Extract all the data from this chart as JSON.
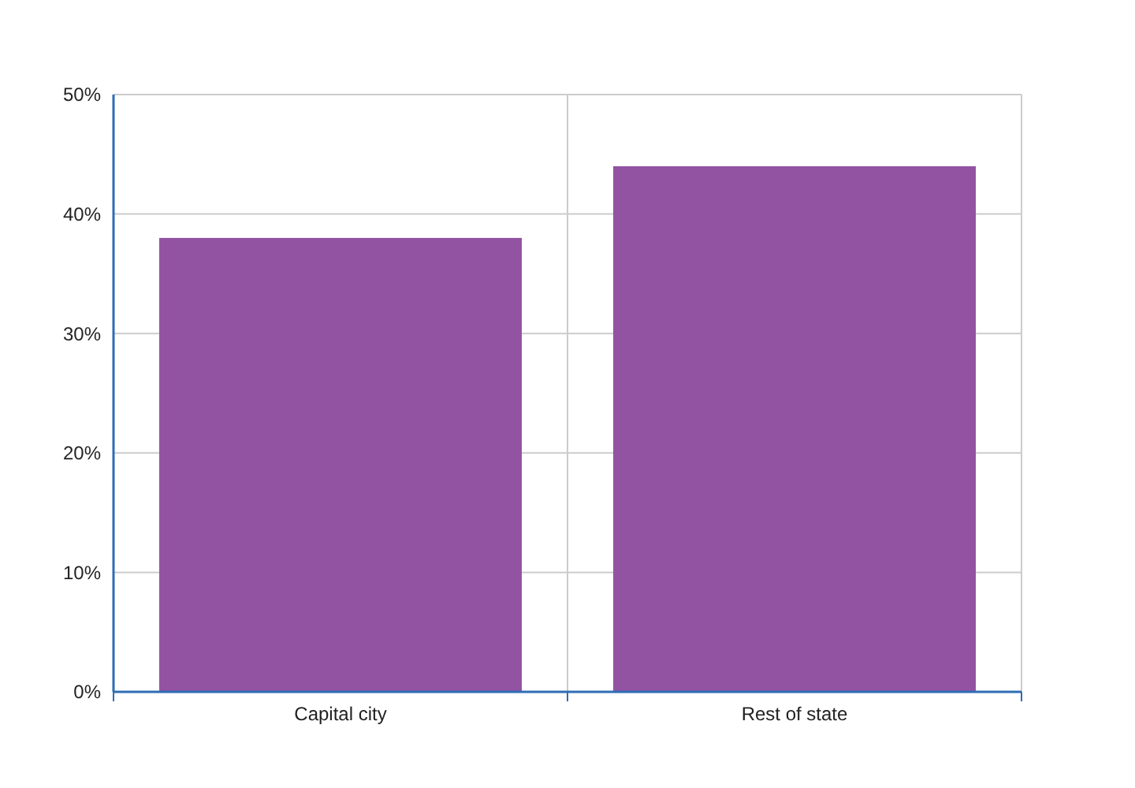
{
  "chart_data": {
    "type": "bar",
    "categories": [
      "Capital city",
      "Rest of state"
    ],
    "values": [
      38,
      44
    ],
    "color": "#9353a3",
    "ylim": [
      0,
      50
    ],
    "yticks": [
      {
        "value": 0,
        "label": "0%"
      },
      {
        "value": 10,
        "label": "10%"
      },
      {
        "value": 20,
        "label": "20%"
      },
      {
        "value": 30,
        "label": "30%"
      },
      {
        "value": 40,
        "label": "40%"
      },
      {
        "value": 50,
        "label": "50%"
      }
    ],
    "grid": true
  }
}
